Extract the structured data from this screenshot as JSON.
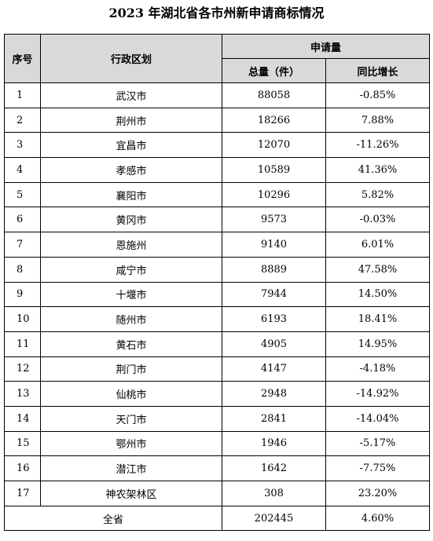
{
  "title": "2023 年湖北省各市州新申请商标情况",
  "headers": {
    "seq": "序号",
    "region": "行政区划",
    "group": "申请量",
    "total": "总量（件）",
    "growth": "同比增长"
  },
  "rows": [
    {
      "seq": "1",
      "region": "武汉市",
      "total": "88058",
      "growth": "-0.85%"
    },
    {
      "seq": "2",
      "region": "荆州市",
      "total": "18266",
      "growth": "7.88%"
    },
    {
      "seq": "3",
      "region": "宜昌市",
      "total": "12070",
      "growth": "-11.26%"
    },
    {
      "seq": "4",
      "region": "孝感市",
      "total": "10589",
      "growth": "41.36%"
    },
    {
      "seq": "5",
      "region": "襄阳市",
      "total": "10296",
      "growth": "5.82%"
    },
    {
      "seq": "6",
      "region": "黄冈市",
      "total": "9573",
      "growth": "-0.03%"
    },
    {
      "seq": "7",
      "region": "恩施州",
      "total": "9140",
      "growth": "6.01%"
    },
    {
      "seq": "8",
      "region": "咸宁市",
      "total": "8889",
      "growth": "47.58%"
    },
    {
      "seq": "9",
      "region": "十堰市",
      "total": "7944",
      "growth": "14.50%"
    },
    {
      "seq": "10",
      "region": "随州市",
      "total": "6193",
      "growth": "18.41%"
    },
    {
      "seq": "11",
      "region": "黄石市",
      "total": "4905",
      "growth": "14.95%"
    },
    {
      "seq": "12",
      "region": "荆门市",
      "total": "4147",
      "growth": "-4.18%"
    },
    {
      "seq": "13",
      "region": "仙桃市",
      "total": "2948",
      "growth": "-14.92%"
    },
    {
      "seq": "14",
      "region": "天门市",
      "total": "2841",
      "growth": "-14.04%"
    },
    {
      "seq": "15",
      "region": "鄂州市",
      "total": "1946",
      "growth": "-5.17%"
    },
    {
      "seq": "16",
      "region": "潜江市",
      "total": "1642",
      "growth": "-7.75%"
    },
    {
      "seq": "17",
      "region": "神农架林区",
      "total": "308",
      "growth": "23.20%"
    }
  ],
  "summary": {
    "label": "全省",
    "total": "202445",
    "growth": "4.60%"
  }
}
